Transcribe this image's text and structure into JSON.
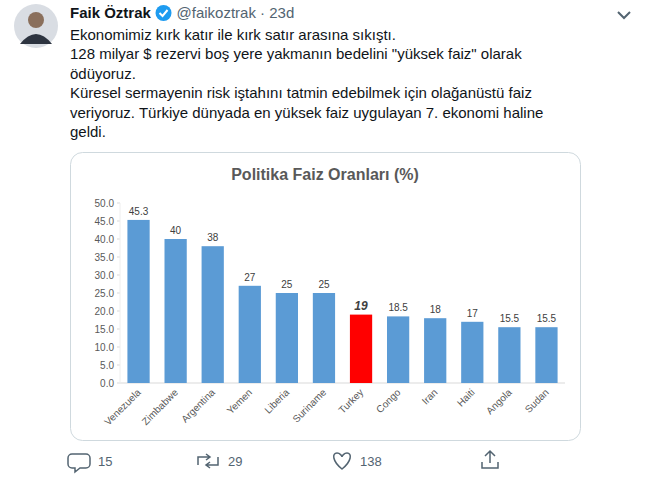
{
  "tweet": {
    "author": "Faik Öztrak",
    "meta": "@faikoztrak · 23d",
    "lines": [
      "Ekonomimiz kırk katır ile kırk satır arasına sıkıştı.",
      "128 milyar $ rezervi boş yere yakmanın bedelini \"yüksek faiz\" olarak",
      "ödüyoruz.",
      "Küresel sermayenin risk iştahını tatmin edebilmek için olağanüstü faiz",
      "veriyoruz. Türkiye dünyada en yüksek faiz uygulayan 7. ekonomi haline",
      "geldi."
    ],
    "replies": 15,
    "retweets": 29,
    "likes": 138
  },
  "chart_data": {
    "type": "bar",
    "title": "Politika Faiz Oranları (%)",
    "categories": [
      "Venezuela",
      "Zimbabwe",
      "Argentina",
      "Yemen",
      "Liberia",
      "Suriname",
      "Turkey",
      "Congo",
      "Iran",
      "Haiti",
      "Angola",
      "Sudan"
    ],
    "values": [
      45.3,
      40,
      38,
      27,
      25,
      25,
      19,
      18.5,
      18,
      17,
      15.5,
      15.5
    ],
    "colors": [
      "#5b9bd5",
      "#5b9bd5",
      "#5b9bd5",
      "#5b9bd5",
      "#5b9bd5",
      "#5b9bd5",
      "#ff0000",
      "#5b9bd5",
      "#5b9bd5",
      "#5b9bd5",
      "#5b9bd5",
      "#5b9bd5"
    ],
    "ylim": [
      0,
      50
    ],
    "yticks": [
      {
        "value": 0,
        "label": "0.0"
      },
      {
        "value": 5,
        "label": "5.0"
      },
      {
        "value": 10,
        "label": "10.0"
      },
      {
        "value": 15,
        "label": "15.0"
      },
      {
        "value": 20,
        "label": "20.0"
      },
      {
        "value": 25,
        "label": "25.0"
      },
      {
        "value": 30,
        "label": "30.0"
      },
      {
        "value": 35,
        "label": "35.0"
      },
      {
        "value": 40,
        "label": "40.0"
      },
      {
        "value": 45,
        "label": "45.0"
      },
      {
        "value": 50,
        "label": "50.0"
      }
    ],
    "grid": false,
    "data_labels": true
  }
}
